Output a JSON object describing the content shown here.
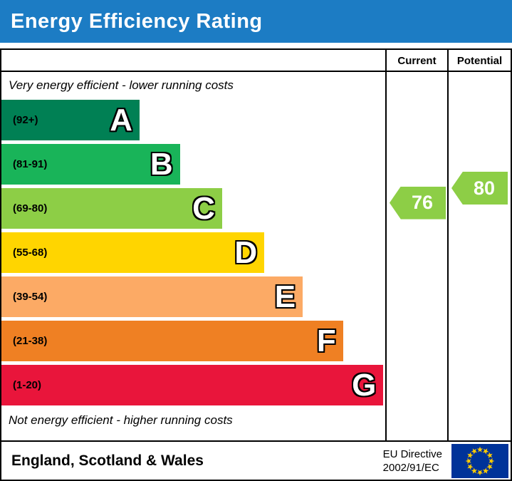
{
  "header": {
    "title": "Energy Efficiency Rating"
  },
  "columns": {
    "current": "Current",
    "potential": "Potential"
  },
  "notes": {
    "top": "Very energy efficient - lower running costs",
    "bottom": "Not energy efficient - higher running costs"
  },
  "footer": {
    "region": "England, Scotland & Wales",
    "directive_line1": "EU Directive",
    "directive_line2": "2002/91/EC"
  },
  "colors": {
    "title_bar_bg": "#1c7cc4",
    "title_text": "#ffffff",
    "border": "#000000",
    "eu_flag_bg": "#003399",
    "eu_flag_star": "#ffcc00"
  },
  "chart_data": {
    "type": "bar",
    "orientation": "horizontal",
    "title": "Energy Efficiency Rating",
    "bands": [
      {
        "letter": "A",
        "range_label": "(92+)",
        "min": 92,
        "max": 100,
        "color": "#008054",
        "width_pct": 36
      },
      {
        "letter": "B",
        "range_label": "(81-91)",
        "min": 81,
        "max": 91,
        "color": "#19b459",
        "width_pct": 46.5
      },
      {
        "letter": "C",
        "range_label": "(69-80)",
        "min": 69,
        "max": 80,
        "color": "#8dce46",
        "width_pct": 57.5
      },
      {
        "letter": "D",
        "range_label": "(55-68)",
        "min": 55,
        "max": 68,
        "color": "#ffd500",
        "width_pct": 68.5
      },
      {
        "letter": "E",
        "range_label": "(39-54)",
        "min": 39,
        "max": 54,
        "color": "#fcaa65",
        "width_pct": 78.5
      },
      {
        "letter": "F",
        "range_label": "(21-38)",
        "min": 21,
        "max": 38,
        "color": "#ef8023",
        "width_pct": 89
      },
      {
        "letter": "G",
        "range_label": "(1-20)",
        "min": 1,
        "max": 20,
        "color": "#e9153b",
        "width_pct": 99.5
      }
    ],
    "markers": {
      "current": {
        "label": "Current",
        "value": 76,
        "band": "C",
        "color": "#8dce46"
      },
      "potential": {
        "label": "Potential",
        "value": 80,
        "band": "C",
        "color": "#8dce46"
      }
    }
  }
}
